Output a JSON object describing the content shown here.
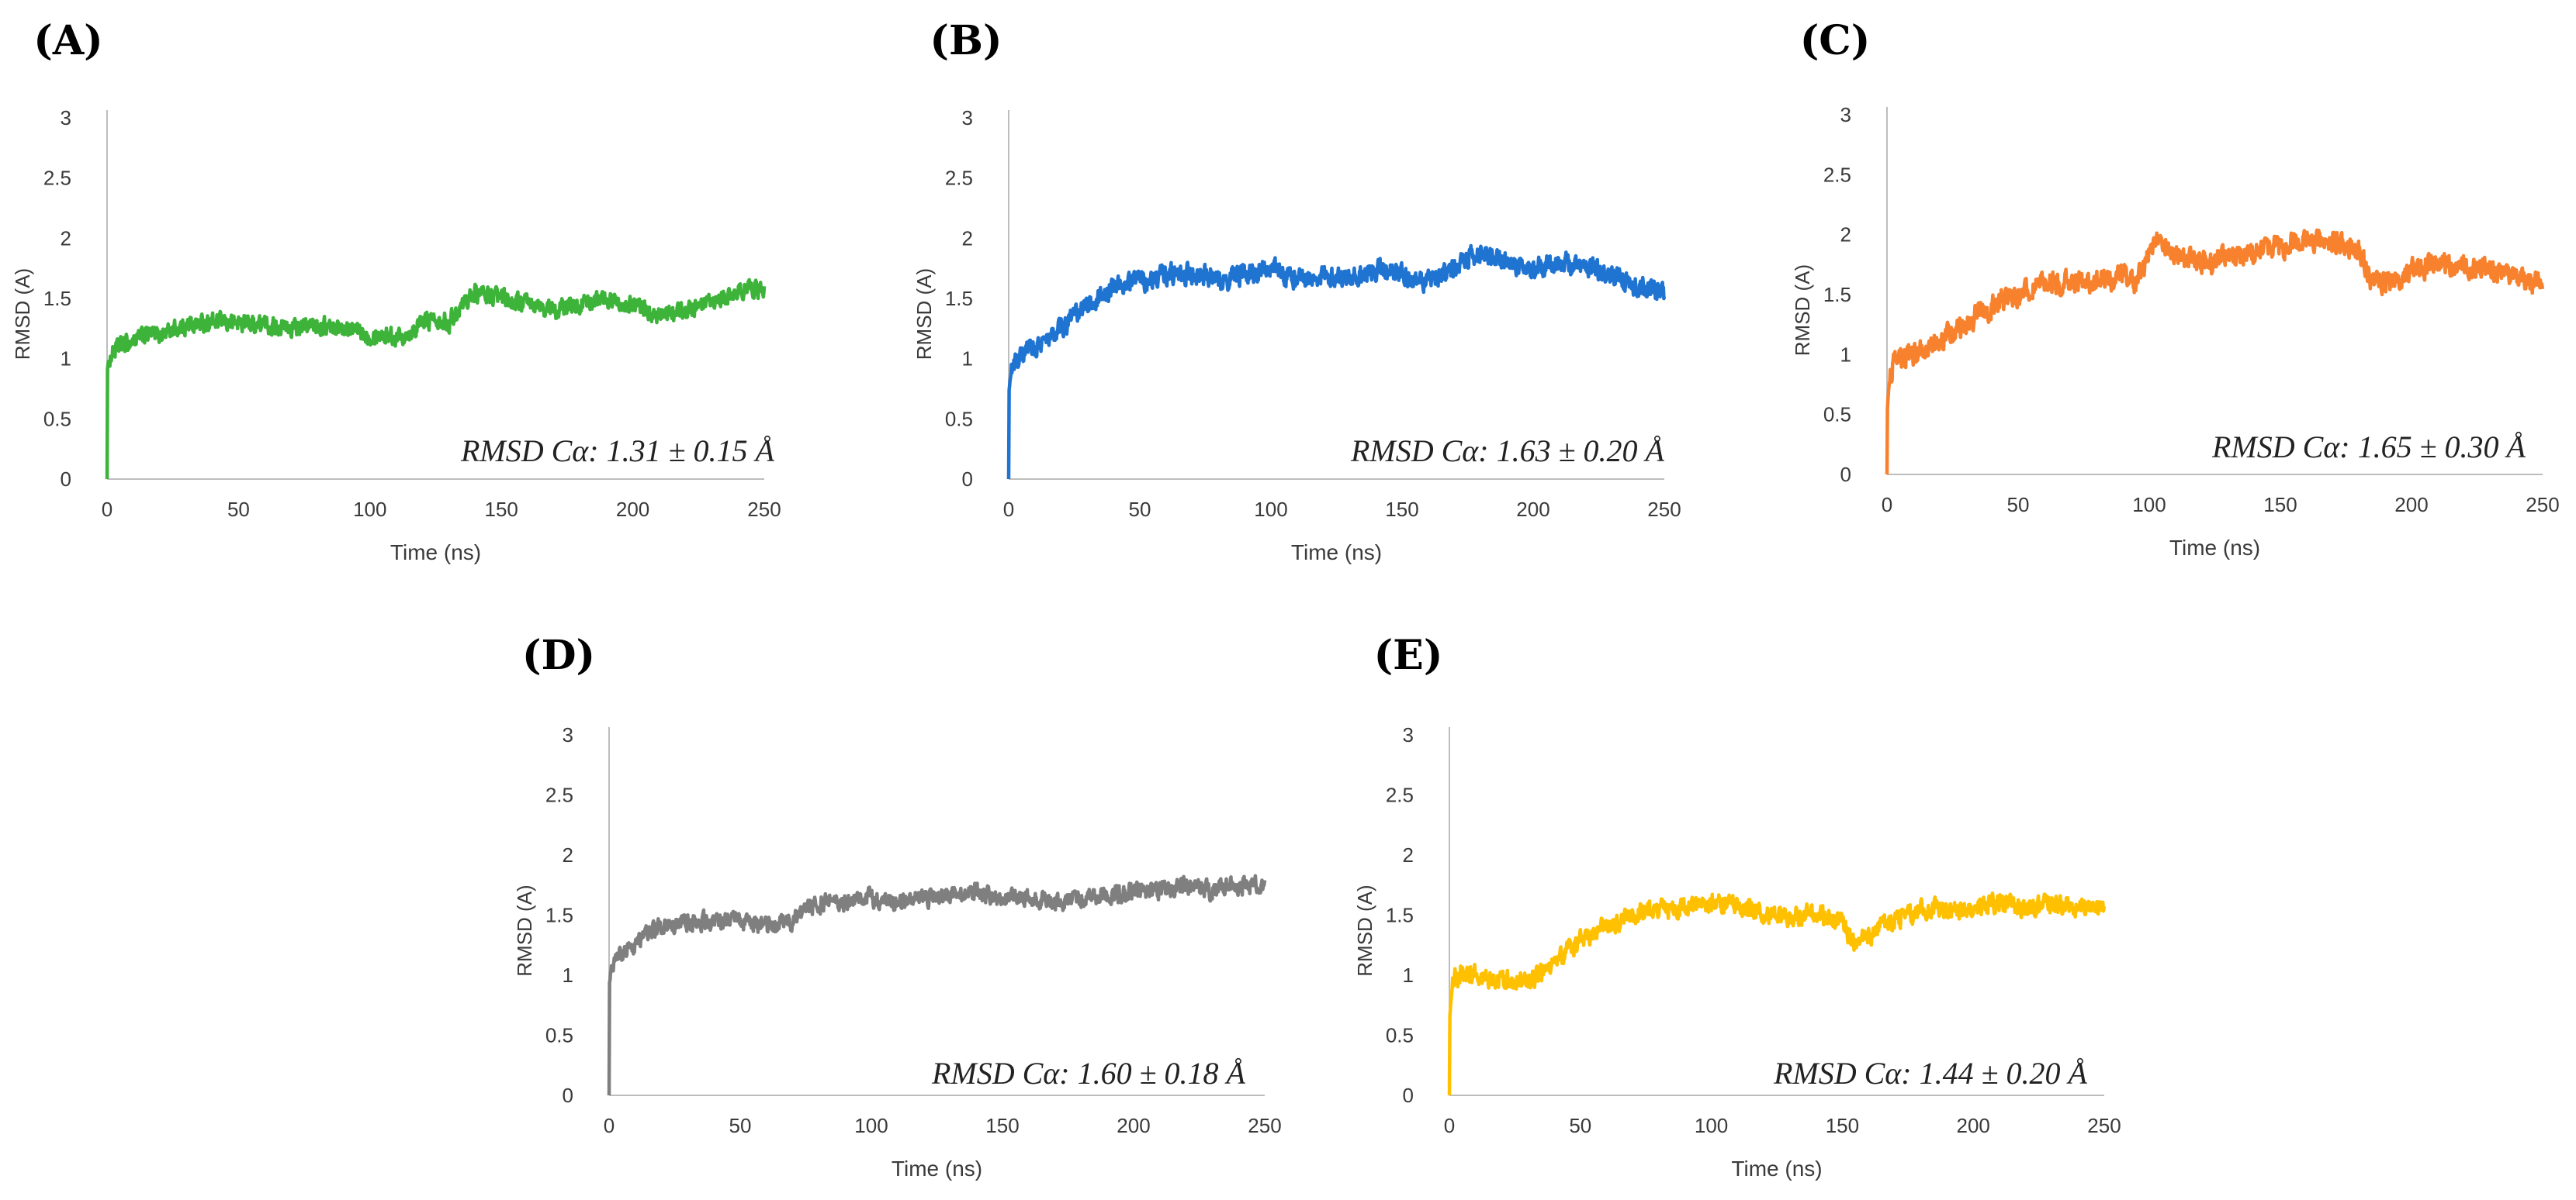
{
  "chart_data": [
    {
      "type": "line",
      "panel_label": "(A)",
      "title": "",
      "xlabel": "Time (ns)",
      "ylabel": "RMSD (A)",
      "xlim": [
        0,
        250
      ],
      "ylim": [
        0,
        3
      ],
      "x_ticks": [
        "0",
        "50",
        "100",
        "150",
        "200",
        "250"
      ],
      "y_ticks": [
        "0",
        "0.5",
        "1",
        "1.5",
        "2",
        "2.5",
        "3"
      ],
      "grid": false,
      "color": "#3db33a",
      "annotation": "RMSD Cα: 1.31 ± 0.15 Å",
      "series": [
        {
          "name": "A",
          "x": [
            0,
            1,
            2,
            5,
            10,
            15,
            20,
            30,
            40,
            50,
            60,
            70,
            80,
            90,
            100,
            105,
            110,
            115,
            120,
            125,
            130,
            135,
            140,
            150,
            160,
            170,
            180,
            190,
            200,
            210,
            220,
            230,
            240,
            245,
            250
          ],
          "values": [
            0.9,
            1.0,
            1.05,
            1.1,
            1.15,
            1.2,
            1.2,
            1.28,
            1.3,
            1.3,
            1.28,
            1.25,
            1.28,
            1.25,
            1.2,
            1.2,
            1.18,
            1.22,
            1.3,
            1.35,
            1.3,
            1.45,
            1.55,
            1.5,
            1.45,
            1.4,
            1.45,
            1.5,
            1.45,
            1.35,
            1.4,
            1.45,
            1.55,
            1.6,
            1.55
          ],
          "noise": 0.11
        }
      ]
    },
    {
      "type": "line",
      "panel_label": "(B)",
      "title": "",
      "xlabel": "Time (ns)",
      "ylabel": "RMSD (A)",
      "xlim": [
        0,
        250
      ],
      "ylim": [
        0,
        3
      ],
      "x_ticks": [
        "0",
        "50",
        "100",
        "150",
        "200",
        "250"
      ],
      "y_ticks": [
        "0",
        "0.5",
        "1",
        "1.5",
        "2",
        "2.5",
        "3"
      ],
      "grid": false,
      "color": "#1f73d1",
      "annotation": "RMSD Cα: 1.63 ± 0.20 Å",
      "series": [
        {
          "name": "B",
          "x": [
            0,
            1,
            2,
            5,
            10,
            15,
            20,
            25,
            30,
            35,
            40,
            50,
            60,
            70,
            80,
            90,
            100,
            110,
            120,
            130,
            140,
            150,
            160,
            170,
            175,
            180,
            190,
            200,
            210,
            220,
            230,
            240,
            250
          ],
          "values": [
            0.7,
            0.9,
            0.95,
            1.0,
            1.1,
            1.15,
            1.25,
            1.35,
            1.45,
            1.5,
            1.6,
            1.65,
            1.7,
            1.7,
            1.65,
            1.7,
            1.75,
            1.65,
            1.7,
            1.65,
            1.75,
            1.7,
            1.65,
            1.75,
            1.85,
            1.85,
            1.8,
            1.75,
            1.8,
            1.75,
            1.7,
            1.6,
            1.55
          ],
          "noise": 0.13
        }
      ]
    },
    {
      "type": "line",
      "panel_label": "(C)",
      "title": "",
      "xlabel": "Time (ns)",
      "ylabel": "RMSD (A)",
      "xlim": [
        0,
        250
      ],
      "ylim": [
        0,
        3
      ],
      "x_ticks": [
        "0",
        "50",
        "100",
        "150",
        "200",
        "250"
      ],
      "y_ticks": [
        "0",
        "0.5",
        "1",
        "1.5",
        "2",
        "2.5",
        "3"
      ],
      "grid": false,
      "color": "#f7812d",
      "annotation": "RMSD Cα: 1.65 ± 0.30 Å",
      "series": [
        {
          "name": "C",
          "x": [
            0,
            1,
            2,
            5,
            10,
            15,
            20,
            25,
            30,
            35,
            40,
            50,
            60,
            70,
            80,
            90,
            95,
            100,
            105,
            110,
            120,
            130,
            140,
            150,
            160,
            170,
            175,
            180,
            185,
            190,
            200,
            210,
            220,
            230,
            240,
            250
          ],
          "values": [
            0.5,
            0.8,
            0.9,
            0.95,
            1.0,
            1.05,
            1.1,
            1.2,
            1.25,
            1.35,
            1.4,
            1.5,
            1.6,
            1.6,
            1.6,
            1.65,
            1.6,
            1.85,
            1.95,
            1.85,
            1.75,
            1.8,
            1.85,
            1.9,
            1.95,
            1.95,
            1.9,
            1.85,
            1.6,
            1.6,
            1.7,
            1.75,
            1.75,
            1.7,
            1.65,
            1.6
          ],
          "noise": 0.14
        }
      ]
    },
    {
      "type": "line",
      "panel_label": "(D)",
      "title": "",
      "xlabel": "Time (ns)",
      "ylabel": "RMSD (A)",
      "xlim": [
        0,
        250
      ],
      "ylim": [
        0,
        3
      ],
      "x_ticks": [
        "0",
        "50",
        "100",
        "150",
        "200",
        "250"
      ],
      "y_ticks": [
        "0",
        "0.5",
        "1",
        "1.5",
        "2",
        "2.5",
        "3"
      ],
      "grid": false,
      "color": "#7f7f7f",
      "annotation": "RMSD Cα: 1.60 ± 0.18 Å",
      "series": [
        {
          "name": "D",
          "x": [
            0,
            1,
            2,
            5,
            10,
            15,
            20,
            30,
            40,
            50,
            60,
            70,
            75,
            80,
            90,
            100,
            110,
            120,
            130,
            140,
            150,
            160,
            170,
            180,
            190,
            200,
            210,
            220,
            230,
            240,
            250
          ],
          "values": [
            0.9,
            1.1,
            1.15,
            1.2,
            1.25,
            1.35,
            1.4,
            1.45,
            1.45,
            1.45,
            1.4,
            1.45,
            1.55,
            1.6,
            1.6,
            1.65,
            1.6,
            1.65,
            1.65,
            1.7,
            1.65,
            1.65,
            1.6,
            1.65,
            1.65,
            1.7,
            1.7,
            1.75,
            1.7,
            1.75,
            1.75
          ],
          "noise": 0.11
        }
      ]
    },
    {
      "type": "line",
      "panel_label": "(E)",
      "title": "",
      "xlabel": "Time (ns)",
      "ylabel": "RMSD (A)",
      "xlim": [
        0,
        250
      ],
      "ylim": [
        0,
        3
      ],
      "x_ticks": [
        "0",
        "50",
        "100",
        "150",
        "200",
        "250"
      ],
      "y_ticks": [
        "0",
        "0.5",
        "1",
        "1.5",
        "2",
        "2.5",
        "3"
      ],
      "grid": false,
      "color": "#ffc000",
      "annotation": "RMSD Cα: 1.44 ± 0.20 Å",
      "series": [
        {
          "name": "E",
          "x": [
            0,
            1,
            2,
            5,
            10,
            20,
            30,
            40,
            50,
            60,
            70,
            80,
            90,
            100,
            110,
            120,
            130,
            140,
            150,
            155,
            160,
            170,
            180,
            190,
            200,
            210,
            220,
            230,
            240,
            250
          ],
          "values": [
            0.6,
            0.9,
            1.0,
            1.0,
            1.0,
            0.95,
            0.95,
            1.1,
            1.3,
            1.4,
            1.5,
            1.55,
            1.55,
            1.6,
            1.6,
            1.5,
            1.5,
            1.5,
            1.45,
            1.25,
            1.35,
            1.45,
            1.55,
            1.55,
            1.55,
            1.6,
            1.55,
            1.6,
            1.55,
            1.55
          ],
          "noise": 0.12
        }
      ]
    }
  ]
}
